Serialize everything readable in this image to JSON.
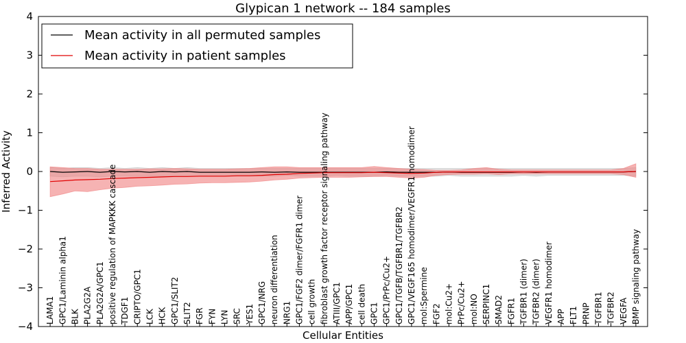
{
  "chart_data": {
    "type": "line",
    "title": "Glypican 1 network -- 184 samples",
    "xlabel": "Cellular Entities",
    "ylabel": "Inferred Activity",
    "ylim": [
      -4,
      4
    ],
    "yticks": [
      -4,
      -3,
      -2,
      -1,
      0,
      1,
      2,
      3,
      4
    ],
    "ytick_labels": [
      "−4",
      "−3",
      "−2",
      "−1",
      "0",
      "1",
      "2",
      "3",
      "4"
    ],
    "grid": false,
    "legend_position": "top-left",
    "categories": [
      "LAMA1",
      "GPC1/Laminin alpha1",
      "BLK",
      "PLA2G2A",
      "PLA2G2A/GPC1",
      "positive regulation of MAPKKK cascade",
      "TDGF1",
      "CRIPTO/GPC1",
      "LCK",
      "HCK",
      "GPC1/SLIT2",
      "SLIT2",
      "FGR",
      "FYN",
      "LYN",
      "SRC",
      "YES1",
      "GPC1/NRG",
      "neuron differentiation",
      "NRG1",
      "GPC1/FGF2 dimer/FGFR1 dimer",
      "cell growth",
      "fibroblast growth factor receptor signaling pathway",
      "ATIII/GPC1",
      "APP/GPC1",
      "cell death",
      "GPC1",
      "GPC1/PrPc/Cu2+",
      "GPC1/TGFB/TGFBR1/TGFBR2",
      "GPC1/VEGF165 homodimer/VEGFR1 homodimer",
      "mol:Spermine",
      "FGF2",
      "mol:Cu2+",
      "PrPc/Cu2+",
      "mol:NO",
      "SERPINC1",
      "SMAD2",
      "FGFR1",
      "TGFBR1 (dimer)",
      "TGFBR2 (dimer)",
      "VEGFR1 homodimer",
      "APP",
      "FLT1",
      "PRNP",
      "TGFBR1",
      "TGFBR2",
      "VEGFA",
      "BMP signaling pathway"
    ],
    "series": [
      {
        "name": "Mean activity in all permuted samples",
        "color": "#000000",
        "band_color": "#bfbfbf",
        "values": [
          0.0,
          -0.02,
          -0.01,
          0.0,
          -0.02,
          0.0,
          -0.01,
          0.0,
          -0.02,
          0.0,
          -0.01,
          0.0,
          -0.02,
          -0.02,
          -0.02,
          -0.02,
          -0.02,
          -0.01,
          -0.02,
          -0.01,
          -0.02,
          -0.02,
          -0.02,
          -0.02,
          -0.02,
          -0.02,
          -0.02,
          -0.01,
          -0.02,
          -0.02,
          -0.02,
          -0.02,
          -0.01,
          -0.02,
          -0.02,
          -0.02,
          -0.02,
          -0.02,
          -0.01,
          -0.02,
          -0.01,
          -0.01,
          -0.01,
          -0.01,
          -0.01,
          -0.01,
          -0.01,
          0.0
        ],
        "lower": [
          -0.12,
          -0.14,
          -0.12,
          -0.12,
          -0.14,
          -0.12,
          -0.12,
          -0.12,
          -0.12,
          -0.12,
          -0.12,
          -0.12,
          -0.12,
          -0.12,
          -0.12,
          -0.12,
          -0.12,
          -0.12,
          -0.12,
          -0.1,
          -0.12,
          -0.12,
          -0.12,
          -0.1,
          -0.12,
          -0.12,
          -0.12,
          -0.1,
          -0.12,
          -0.12,
          -0.12,
          -0.12,
          -0.1,
          -0.12,
          -0.12,
          -0.12,
          -0.12,
          -0.12,
          -0.1,
          -0.12,
          -0.1,
          -0.1,
          -0.1,
          -0.1,
          -0.1,
          -0.1,
          -0.1,
          -0.12
        ],
        "upper": [
          0.1,
          0.08,
          0.1,
          0.1,
          0.08,
          0.1,
          0.08,
          0.1,
          0.08,
          0.1,
          0.08,
          0.1,
          0.08,
          0.08,
          0.08,
          0.08,
          0.08,
          0.08,
          0.08,
          0.08,
          0.08,
          0.08,
          0.08,
          0.08,
          0.08,
          0.08,
          0.08,
          0.08,
          0.08,
          0.08,
          0.08,
          0.08,
          0.08,
          0.08,
          0.08,
          0.08,
          0.08,
          0.08,
          0.08,
          0.08,
          0.08,
          0.08,
          0.08,
          0.08,
          0.08,
          0.08,
          0.08,
          0.1
        ]
      },
      {
        "name": "Mean activity in patient samples",
        "color": "#e00000",
        "band_color": "#f08080",
        "values": [
          -0.26,
          -0.24,
          -0.22,
          -0.21,
          -0.2,
          -0.18,
          -0.17,
          -0.16,
          -0.15,
          -0.14,
          -0.13,
          -0.13,
          -0.12,
          -0.12,
          -0.12,
          -0.11,
          -0.11,
          -0.1,
          -0.08,
          -0.07,
          -0.05,
          -0.04,
          -0.03,
          -0.03,
          -0.03,
          -0.03,
          -0.02,
          -0.03,
          -0.04,
          -0.05,
          -0.04,
          -0.02,
          -0.01,
          -0.01,
          -0.01,
          -0.01,
          -0.01,
          -0.01,
          -0.01,
          -0.01,
          -0.01,
          -0.01,
          -0.01,
          -0.01,
          -0.01,
          -0.01,
          -0.01,
          0.0
        ],
        "lower": [
          -0.65,
          -0.58,
          -0.5,
          -0.52,
          -0.47,
          -0.43,
          -0.41,
          -0.38,
          -0.37,
          -0.35,
          -0.33,
          -0.32,
          -0.3,
          -0.29,
          -0.29,
          -0.28,
          -0.27,
          -0.25,
          -0.22,
          -0.2,
          -0.17,
          -0.16,
          -0.15,
          -0.15,
          -0.15,
          -0.14,
          -0.13,
          -0.13,
          -0.15,
          -0.17,
          -0.15,
          -0.1,
          -0.08,
          -0.07,
          -0.07,
          -0.06,
          -0.08,
          -0.06,
          -0.06,
          -0.06,
          -0.06,
          -0.06,
          -0.06,
          -0.06,
          -0.06,
          -0.06,
          -0.08,
          -0.15
        ],
        "upper": [
          0.12,
          0.1,
          0.08,
          0.08,
          0.06,
          0.06,
          0.06,
          0.06,
          0.07,
          0.07,
          0.08,
          0.07,
          0.06,
          0.06,
          0.06,
          0.07,
          0.08,
          0.1,
          0.12,
          0.12,
          0.1,
          0.1,
          0.1,
          0.1,
          0.1,
          0.1,
          0.13,
          0.1,
          0.08,
          0.06,
          0.05,
          0.03,
          0.03,
          0.04,
          0.08,
          0.1,
          0.06,
          0.04,
          0.04,
          0.04,
          0.04,
          0.04,
          0.04,
          0.04,
          0.04,
          0.04,
          0.08,
          0.2
        ]
      }
    ]
  }
}
